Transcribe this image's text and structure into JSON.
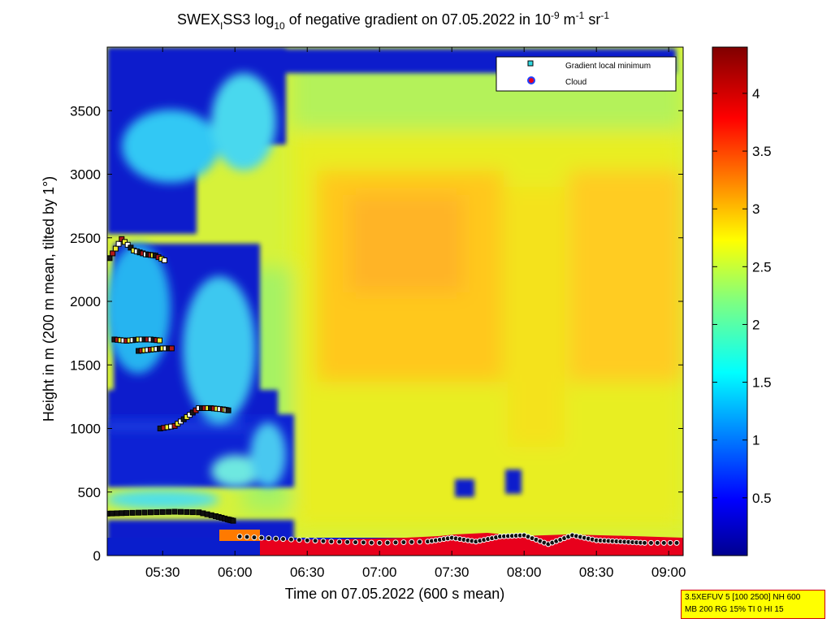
{
  "chart_data": {
    "type": "heatmap",
    "title": {
      "prefix": "SWEX",
      "prefix_sub": "I",
      "middle": "SS3 log",
      "log_sub": "10",
      "text": " of negative gradient on 07.05.2022 in 10",
      "exp1": "-9",
      "unit1": " m",
      "exp2": "-1",
      "unit2": " sr",
      "exp3": "-1"
    },
    "xlabel": "Time on 07.05.2022 (600 s mean)",
    "ylabel": "Height in m (200 m mean, tilted by 1°)",
    "x_ticks": [
      "05:30",
      "06:00",
      "06:30",
      "07:00",
      "07:30",
      "08:00",
      "08:30",
      "09:00"
    ],
    "x_tick_minutes": [
      330,
      360,
      390,
      420,
      450,
      480,
      510,
      540
    ],
    "xlim_minutes": [
      307,
      546
    ],
    "y_ticks": [
      0,
      500,
      1000,
      1500,
      2000,
      2500,
      3000,
      3500
    ],
    "ylim": [
      0,
      4000
    ],
    "colorbar": {
      "ticks": [
        "0.5",
        "1",
        "1.5",
        "2",
        "2.5",
        "3",
        "3.5",
        "4"
      ],
      "tick_values": [
        0.5,
        1,
        1.5,
        2,
        2.5,
        3,
        3.5,
        4
      ],
      "range": [
        0,
        4.4
      ],
      "colormap": "jet"
    },
    "legend": {
      "position": "top-right",
      "entries": [
        {
          "label": "Gradient local minimum",
          "marker": "square",
          "color": "#2fd8e0"
        },
        {
          "label": "Cloud",
          "marker": "circle",
          "color": "#e8001c",
          "edge": "#2040ff"
        }
      ]
    },
    "gradient_minimum_series": [
      {
        "t": [
          307,
          315,
          325,
          335,
          345,
          352,
          357,
          360
        ],
        "h": [
          330,
          335,
          340,
          345,
          340,
          310,
          285,
          270
        ]
      },
      {
        "t": [
          310,
          315,
          320,
          325,
          330
        ],
        "h": [
          1700,
          1690,
          1700,
          1700,
          1690
        ]
      },
      {
        "t": [
          320,
          325,
          330,
          335
        ],
        "h": [
          1610,
          1620,
          1630,
          1630
        ]
      },
      {
        "t": [
          329,
          335,
          340,
          345,
          350,
          355,
          358
        ],
        "h": [
          1000,
          1020,
          1090,
          1160,
          1160,
          1150,
          1140
        ]
      },
      {
        "t": [
          308,
          313,
          318,
          323,
          327,
          332
        ],
        "h": [
          2340,
          2490,
          2400,
          2370,
          2360,
          2310
        ]
      }
    ],
    "cloud_base_series": {
      "t": [
        362,
        380,
        400,
        420,
        440,
        450,
        460,
        470,
        480,
        490,
        500,
        510,
        520,
        530,
        546
      ],
      "h": [
        150,
        130,
        110,
        100,
        110,
        140,
        110,
        150,
        160,
        90,
        160,
        120,
        110,
        100,
        100
      ]
    }
  }
}
